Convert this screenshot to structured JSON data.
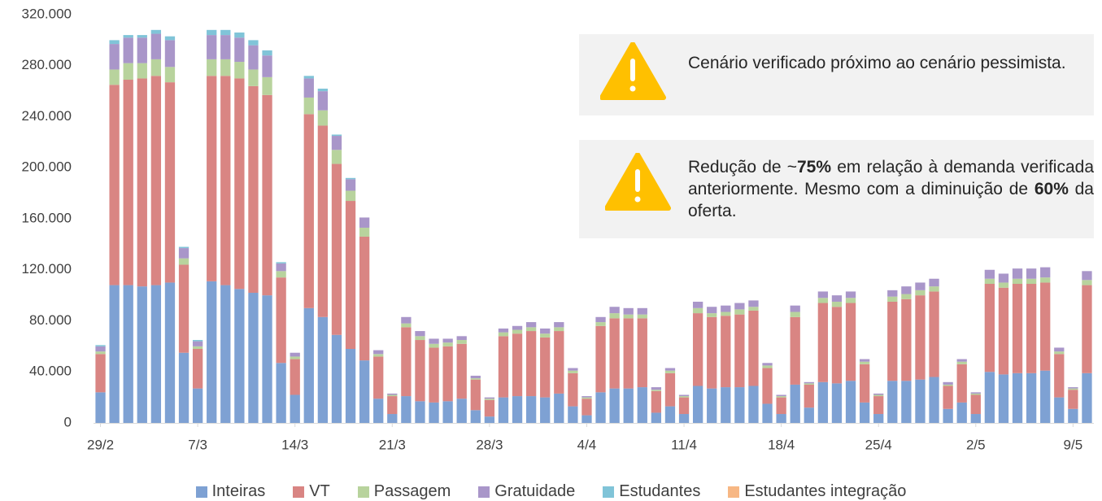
{
  "chart_data": {
    "type": "stacked-bar",
    "categories": [
      "29/2",
      null,
      null,
      null,
      null,
      null,
      null,
      "7/3",
      null,
      null,
      null,
      null,
      null,
      null,
      "14/3",
      null,
      null,
      null,
      null,
      null,
      null,
      "21/3",
      null,
      null,
      null,
      null,
      null,
      null,
      "28/3",
      null,
      null,
      null,
      null,
      null,
      null,
      "4/4",
      null,
      null,
      null,
      null,
      null,
      null,
      "11/4",
      null,
      null,
      null,
      null,
      null,
      null,
      "18/4",
      null,
      null,
      null,
      null,
      null,
      null,
      "25/4",
      null,
      null,
      null,
      null,
      null,
      null,
      "2/5",
      null,
      null,
      null,
      null,
      null,
      null,
      "9/5",
      null
    ],
    "series": [
      {
        "name": "Inteiras",
        "color": "#7ea1d3",
        "values": [
          24000,
          108000,
          108000,
          107000,
          108000,
          110000,
          55000,
          27000,
          111000,
          108000,
          105000,
          102000,
          100000,
          47000,
          22000,
          90000,
          83000,
          69000,
          58000,
          49000,
          19000,
          7000,
          21000,
          17000,
          16000,
          17000,
          19000,
          10000,
          5000,
          20000,
          21000,
          21000,
          20000,
          23000,
          13000,
          6000,
          24000,
          27000,
          27000,
          28000,
          8000,
          13000,
          7000,
          29000,
          27000,
          28000,
          28000,
          29000,
          15000,
          7000,
          30000,
          12000,
          32000,
          31000,
          33000,
          16000,
          7000,
          33000,
          33000,
          34000,
          36000,
          11000,
          16000,
          7000,
          40000,
          38000,
          39000,
          39000,
          41000,
          20000,
          11000,
          39000
        ]
      },
      {
        "name": "VT",
        "color": "#d98583",
        "values": [
          30000,
          157000,
          161000,
          163000,
          164000,
          157000,
          69000,
          31000,
          161000,
          164000,
          165000,
          162000,
          157000,
          67000,
          28000,
          152000,
          150000,
          134000,
          116000,
          97000,
          33000,
          14000,
          54000,
          48000,
          43000,
          43000,
          43000,
          24000,
          13000,
          48000,
          49000,
          51000,
          47000,
          49000,
          26000,
          13000,
          52000,
          55000,
          55000,
          54000,
          17000,
          26000,
          13000,
          57000,
          56000,
          56000,
          57000,
          59000,
          28000,
          13000,
          53000,
          18000,
          62000,
          60000,
          61000,
          30000,
          14000,
          62000,
          64000,
          66000,
          67000,
          18000,
          30000,
          15000,
          69000,
          68000,
          70000,
          70000,
          69000,
          34000,
          15000,
          69000
        ]
      },
      {
        "name": "Passagem",
        "color": "#b8d39d",
        "values": [
          2000,
          12000,
          13000,
          12000,
          13000,
          12000,
          5000,
          2000,
          13000,
          13000,
          13000,
          13000,
          14000,
          5000,
          2000,
          13000,
          12000,
          11000,
          8000,
          7000,
          2000,
          1000,
          3000,
          3000,
          3000,
          3000,
          3000,
          1000,
          1000,
          3000,
          3000,
          3000,
          3000,
          3000,
          2000,
          1000,
          3000,
          4000,
          3000,
          3000,
          1000,
          2000,
          1000,
          4000,
          3000,
          3000,
          4000,
          3000,
          2000,
          1000,
          4000,
          1000,
          4000,
          4000,
          4000,
          2000,
          1000,
          4000,
          4000,
          4000,
          4000,
          1000,
          2000,
          1000,
          4000,
          4000,
          4000,
          4000,
          4000,
          2000,
          1000,
          4000
        ]
      },
      {
        "name": "Gratuidade",
        "color": "#a996c9",
        "values": [
          4000,
          20000,
          20000,
          20000,
          20000,
          21000,
          8000,
          4000,
          19000,
          19000,
          19000,
          19000,
          17000,
          6000,
          3000,
          15000,
          15000,
          11000,
          9000,
          8000,
          3000,
          1000,
          5000,
          4000,
          4000,
          3000,
          3000,
          2000,
          1000,
          3000,
          3000,
          4000,
          4000,
          4000,
          2000,
          1000,
          4000,
          5000,
          5000,
          5000,
          2000,
          2000,
          1000,
          5000,
          5000,
          5000,
          5000,
          5000,
          2000,
          1000,
          5000,
          1000,
          5000,
          5000,
          5000,
          2000,
          1000,
          5000,
          6000,
          6000,
          6000,
          2000,
          2000,
          1000,
          7000,
          7000,
          8000,
          8000,
          8000,
          3000,
          1000,
          7000
        ]
      },
      {
        "name": "Estudantes",
        "color": "#80c4d8",
        "values": [
          1000,
          3000,
          2000,
          2000,
          3000,
          3000,
          1000,
          1000,
          4000,
          4000,
          4000,
          4000,
          4000,
          1000,
          0,
          2000,
          2000,
          1000,
          1000,
          0,
          0,
          0,
          0,
          0,
          0,
          0,
          0,
          0,
          0,
          0,
          0,
          0,
          0,
          0,
          0,
          0,
          0,
          0,
          0,
          0,
          0,
          0,
          0,
          0,
          0,
          0,
          0,
          0,
          0,
          0,
          0,
          0,
          0,
          0,
          0,
          0,
          0,
          0,
          0,
          0,
          0,
          0,
          0,
          0,
          0,
          0,
          0,
          0,
          0,
          0,
          0,
          0
        ]
      },
      {
        "name": "Estudantes integração",
        "color": "#f7b784",
        "values": [
          0,
          0,
          0,
          0,
          0,
          0,
          0,
          0,
          0,
          0,
          0,
          0,
          0,
          0,
          0,
          0,
          0,
          0,
          0,
          0,
          0,
          0,
          0,
          0,
          0,
          0,
          0,
          0,
          0,
          0,
          0,
          0,
          0,
          0,
          0,
          0,
          0,
          0,
          0,
          0,
          0,
          0,
          0,
          0,
          0,
          0,
          0,
          0,
          0,
          0,
          0,
          0,
          0,
          0,
          0,
          0,
          0,
          0,
          0,
          0,
          0,
          0,
          0,
          0,
          0,
          0,
          0,
          0,
          0,
          0,
          0,
          0
        ]
      }
    ],
    "ylim": [
      0,
      320000
    ],
    "yticks": [
      0,
      {
        "value": 40000,
        "label": "40.000"
      },
      {
        "value": 80000,
        "label": "80.000"
      },
      {
        "value": 120000,
        "label": "120.000"
      },
      {
        "value": 160000,
        "label": "160.000"
      },
      {
        "value": 200000,
        "label": "200.000"
      },
      {
        "value": 240000,
        "label": "240.000"
      },
      {
        "value": 280000,
        "label": "280.000"
      },
      {
        "value": 320000,
        "label": "320.000"
      }
    ],
    "legend": "bottom",
    "annotations": [
      {
        "parts": [
          {
            "text": "Cenário verificado próximo ao cenário pessimista.",
            "bold": false
          }
        ]
      },
      {
        "parts": [
          {
            "text": "Redução de ~",
            "bold": false
          },
          {
            "text": "75%",
            "bold": true
          },
          {
            "text": " em relação à demanda verificada anteriormente. Mesmo com a diminuição de ",
            "bold": false
          },
          {
            "text": "60%",
            "bold": true
          },
          {
            "text": " da oferta.",
            "bold": false
          }
        ]
      }
    ]
  }
}
